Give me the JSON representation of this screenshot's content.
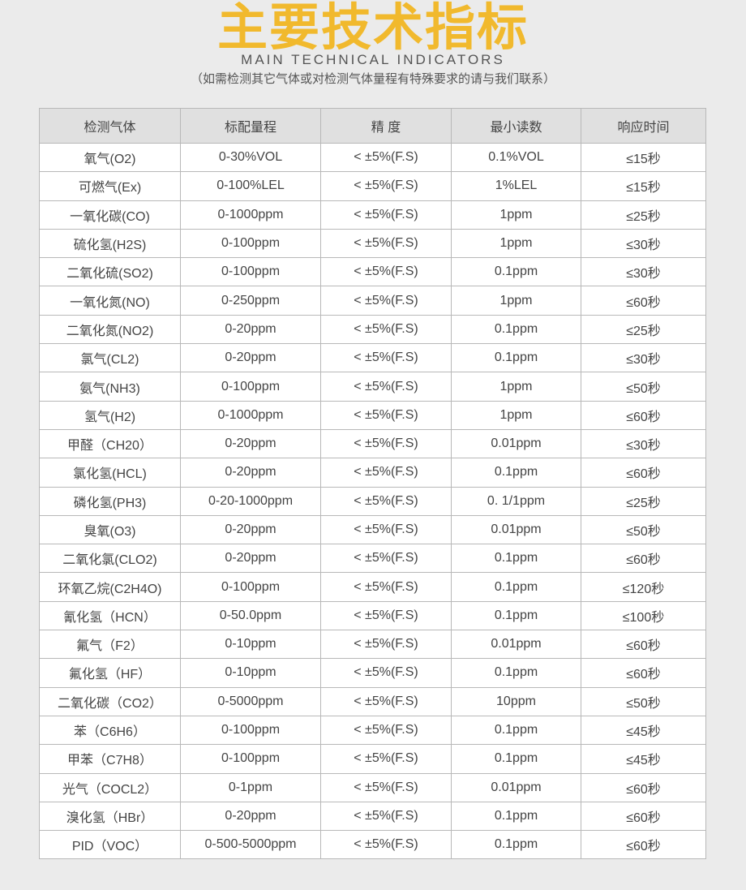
{
  "header": {
    "title": "主要技术指标",
    "subtitle": "MAIN TECHNICAL INDICATORS",
    "note": "（如需检测其它气体或对检测气体量程有特殊要求的请与我们联系）"
  },
  "colors": {
    "title": "#f1b92d",
    "background": "#ebebeb",
    "header_row": "#e0e0e0"
  },
  "table": {
    "columns": [
      "检测气体",
      "标配量程",
      "精 度",
      "最小读数",
      "响应时间"
    ],
    "rows": [
      [
        "氧气(O2)",
        "0-30%VOL",
        "< ±5%(F.S)",
        "0.1%VOL",
        "≤15秒"
      ],
      [
        "可燃气(Ex)",
        "0-100%LEL",
        "< ±5%(F.S)",
        "1%LEL",
        "≤15秒"
      ],
      [
        "一氧化碳(CO)",
        "0-1000ppm",
        "< ±5%(F.S)",
        "1ppm",
        "≤25秒"
      ],
      [
        "硫化氢(H2S)",
        "0-100ppm",
        "< ±5%(F.S)",
        "1ppm",
        "≤30秒"
      ],
      [
        "二氧化硫(SO2)",
        "0-100ppm",
        "< ±5%(F.S)",
        "0.1ppm",
        "≤30秒"
      ],
      [
        "一氧化氮(NO)",
        "0-250ppm",
        "< ±5%(F.S)",
        "1ppm",
        "≤60秒"
      ],
      [
        "二氧化氮(NO2)",
        "0-20ppm",
        "< ±5%(F.S)",
        "0.1ppm",
        "≤25秒"
      ],
      [
        "氯气(CL2)",
        "0-20ppm",
        "< ±5%(F.S)",
        "0.1ppm",
        "≤30秒"
      ],
      [
        "氨气(NH3)",
        "0-100ppm",
        "< ±5%(F.S)",
        "1ppm",
        "≤50秒"
      ],
      [
        "氢气(H2)",
        "0-1000ppm",
        "< ±5%(F.S)",
        "1ppm",
        "≤60秒"
      ],
      [
        "甲醛（CH20）",
        "0-20ppm",
        "< ±5%(F.S)",
        "0.01ppm",
        "≤30秒"
      ],
      [
        "氯化氢(HCL)",
        "0-20ppm",
        "< ±5%(F.S)",
        "0.1ppm",
        "≤60秒"
      ],
      [
        "磷化氢(PH3)",
        "0-20-1000ppm",
        "< ±5%(F.S)",
        "0. 1/1ppm",
        "≤25秒"
      ],
      [
        "臭氧(O3)",
        "0-20ppm",
        "< ±5%(F.S)",
        "0.01ppm",
        "≤50秒"
      ],
      [
        "二氧化氯(CLO2)",
        "0-20ppm",
        "< ±5%(F.S)",
        "0.1ppm",
        "≤60秒"
      ],
      [
        "环氧乙烷(C2H4O)",
        "0-100ppm",
        "< ±5%(F.S)",
        "0.1ppm",
        "≤120秒"
      ],
      [
        "氰化氢（HCN）",
        "0-50.0ppm",
        "< ±5%(F.S)",
        "0.1ppm",
        "≤100秒"
      ],
      [
        "氟气（F2）",
        "0-10ppm",
        "< ±5%(F.S)",
        "0.01ppm",
        "≤60秒"
      ],
      [
        "氟化氢（HF）",
        "0-10ppm",
        "< ±5%(F.S)",
        "0.1ppm",
        "≤60秒"
      ],
      [
        "二氧化碳（CO2）",
        "0-5000ppm",
        "< ±5%(F.S)",
        "10ppm",
        "≤50秒"
      ],
      [
        "苯（C6H6）",
        "0-100ppm",
        "< ±5%(F.S)",
        "0.1ppm",
        "≤45秒"
      ],
      [
        "甲苯（C7H8）",
        "0-100ppm",
        "< ±5%(F.S)",
        "0.1ppm",
        "≤45秒"
      ],
      [
        "光气（COCL2）",
        "0-1ppm",
        "< ±5%(F.S)",
        "0.01ppm",
        "≤60秒"
      ],
      [
        "溴化氢（HBr）",
        "0-20ppm",
        "< ±5%(F.S)",
        "0.1ppm",
        "≤60秒"
      ],
      [
        "PID（VOC）",
        "0-500-5000ppm",
        "< ±5%(F.S)",
        "0.1ppm",
        "≤60秒"
      ]
    ]
  }
}
